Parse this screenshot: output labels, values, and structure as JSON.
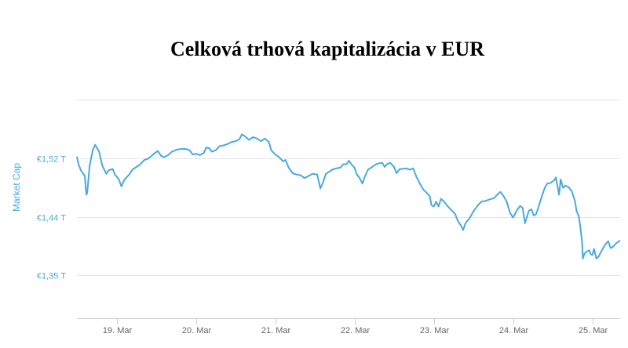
{
  "chart_data": {
    "type": "line",
    "title": "Celková trhová kapitalizácia v EUR",
    "xlabel": "",
    "ylabel": "Market Cap",
    "y_unit": "T EUR",
    "yticks": [
      {
        "value": 1.352,
        "label": "€1,35 T"
      },
      {
        "value": 1.436,
        "label": "€1,44 T"
      },
      {
        "value": 1.52,
        "label": "€1,52 T"
      }
    ],
    "ylim": [
      1.29,
      1.604
    ],
    "xlim": [
      18.5,
      25.35
    ],
    "xticks": [
      {
        "value": 19,
        "label": "19. Mar"
      },
      {
        "value": 20,
        "label": "20. Mar"
      },
      {
        "value": 21,
        "label": "21. Mar"
      },
      {
        "value": 22,
        "label": "22. Mar"
      },
      {
        "value": 23,
        "label": "23. Mar"
      },
      {
        "value": 24,
        "label": "24. Mar"
      },
      {
        "value": 25,
        "label": "25. Mar"
      }
    ],
    "grid": true,
    "legend": "none",
    "colors": {
      "line": "#4aa9dc",
      "grid": "#e6e6e6",
      "axis": "#cccccc",
      "tick_text": "#666666",
      "y_text": "#4aa9dc"
    },
    "series": [
      {
        "points": [
          [
            18.5,
            1.523
          ],
          [
            18.52,
            1.512
          ],
          [
            18.55,
            1.503
          ],
          [
            18.6,
            1.495
          ],
          [
            18.61,
            1.478
          ],
          [
            18.62,
            1.468
          ],
          [
            18.63,
            1.471
          ],
          [
            18.66,
            1.51
          ],
          [
            18.7,
            1.532
          ],
          [
            18.73,
            1.54
          ],
          [
            18.78,
            1.53
          ],
          [
            18.82,
            1.51
          ],
          [
            18.87,
            1.498
          ],
          [
            18.9,
            1.503
          ],
          [
            18.95,
            1.505
          ],
          [
            18.98,
            1.497
          ],
          [
            19.03,
            1.49
          ],
          [
            19.06,
            1.48
          ],
          [
            19.1,
            1.49
          ],
          [
            19.16,
            1.497
          ],
          [
            19.2,
            1.504
          ],
          [
            19.25,
            1.508
          ],
          [
            19.3,
            1.512
          ],
          [
            19.35,
            1.518
          ],
          [
            19.4,
            1.52
          ],
          [
            19.46,
            1.526
          ],
          [
            19.52,
            1.531
          ],
          [
            19.56,
            1.524
          ],
          [
            19.6,
            1.522
          ],
          [
            19.65,
            1.525
          ],
          [
            19.7,
            1.53
          ],
          [
            19.76,
            1.533
          ],
          [
            19.82,
            1.534
          ],
          [
            19.87,
            1.534
          ],
          [
            19.92,
            1.532
          ],
          [
            19.96,
            1.526
          ],
          [
            20.0,
            1.527
          ],
          [
            20.05,
            1.525
          ],
          [
            20.1,
            1.528
          ],
          [
            20.13,
            1.536
          ],
          [
            20.17,
            1.535
          ],
          [
            20.2,
            1.53
          ],
          [
            20.25,
            1.532
          ],
          [
            20.3,
            1.538
          ],
          [
            20.35,
            1.539
          ],
          [
            20.4,
            1.541
          ],
          [
            20.45,
            1.544
          ],
          [
            20.5,
            1.545
          ],
          [
            20.55,
            1.548
          ],
          [
            20.58,
            1.555
          ],
          [
            20.62,
            1.552
          ],
          [
            20.67,
            1.547
          ],
          [
            20.72,
            1.551
          ],
          [
            20.77,
            1.549
          ],
          [
            20.82,
            1.545
          ],
          [
            20.87,
            1.549
          ],
          [
            20.92,
            1.544
          ],
          [
            20.95,
            1.532
          ],
          [
            21.0,
            1.526
          ],
          [
            21.05,
            1.522
          ],
          [
            21.1,
            1.516
          ],
          [
            21.13,
            1.518
          ],
          [
            21.17,
            1.507
          ],
          [
            21.22,
            1.499
          ],
          [
            21.27,
            1.497
          ],
          [
            21.32,
            1.496
          ],
          [
            21.37,
            1.492
          ],
          [
            21.42,
            1.495
          ],
          [
            21.47,
            1.498
          ],
          [
            21.53,
            1.497
          ],
          [
            21.57,
            1.477
          ],
          [
            21.6,
            1.485
          ],
          [
            21.64,
            1.498
          ],
          [
            21.68,
            1.501
          ],
          [
            21.72,
            1.504
          ],
          [
            21.77,
            1.506
          ],
          [
            21.82,
            1.507
          ],
          [
            21.86,
            1.512
          ],
          [
            21.9,
            1.512
          ],
          [
            21.93,
            1.517
          ],
          [
            21.96,
            1.512
          ],
          [
            22.0,
            1.507
          ],
          [
            22.03,
            1.497
          ],
          [
            22.06,
            1.493
          ],
          [
            22.1,
            1.484
          ],
          [
            22.13,
            1.494
          ],
          [
            22.17,
            1.504
          ],
          [
            22.21,
            1.507
          ],
          [
            22.26,
            1.511
          ],
          [
            22.3,
            1.513
          ],
          [
            22.35,
            1.514
          ],
          [
            22.38,
            1.508
          ],
          [
            22.41,
            1.512
          ],
          [
            22.45,
            1.514
          ],
          [
            22.5,
            1.508
          ],
          [
            22.53,
            1.499
          ],
          [
            22.57,
            1.505
          ],
          [
            22.6,
            1.505
          ],
          [
            22.65,
            1.506
          ],
          [
            22.7,
            1.504
          ],
          [
            22.74,
            1.506
          ],
          [
            22.78,
            1.494
          ],
          [
            22.82,
            1.485
          ],
          [
            22.87,
            1.475
          ],
          [
            22.9,
            1.472
          ],
          [
            22.95,
            1.466
          ],
          [
            22.97,
            1.453
          ],
          [
            23.0,
            1.451
          ],
          [
            23.03,
            1.458
          ],
          [
            23.06,
            1.451
          ],
          [
            23.09,
            1.462
          ],
          [
            23.13,
            1.458
          ],
          [
            23.17,
            1.452
          ],
          [
            23.22,
            1.446
          ],
          [
            23.27,
            1.44
          ],
          [
            23.3,
            1.431
          ],
          [
            23.35,
            1.422
          ],
          [
            23.37,
            1.417
          ],
          [
            23.4,
            1.427
          ],
          [
            23.45,
            1.434
          ],
          [
            23.5,
            1.444
          ],
          [
            23.55,
            1.452
          ],
          [
            23.6,
            1.458
          ],
          [
            23.65,
            1.459
          ],
          [
            23.7,
            1.461
          ],
          [
            23.76,
            1.463
          ],
          [
            23.8,
            1.468
          ],
          [
            23.84,
            1.472
          ],
          [
            23.88,
            1.466
          ],
          [
            23.92,
            1.458
          ],
          [
            23.96,
            1.442
          ],
          [
            24.0,
            1.435
          ],
          [
            24.05,
            1.446
          ],
          [
            24.09,
            1.452
          ],
          [
            24.12,
            1.449
          ],
          [
            24.15,
            1.427
          ],
          [
            24.18,
            1.438
          ],
          [
            24.2,
            1.445
          ],
          [
            24.23,
            1.447
          ],
          [
            24.26,
            1.438
          ],
          [
            24.29,
            1.44
          ],
          [
            24.32,
            1.45
          ],
          [
            24.36,
            1.465
          ],
          [
            24.4,
            1.478
          ],
          [
            24.43,
            1.484
          ],
          [
            24.47,
            1.485
          ],
          [
            24.52,
            1.489
          ],
          [
            24.54,
            1.493
          ],
          [
            24.56,
            1.48
          ],
          [
            24.58,
            1.468
          ],
          [
            24.6,
            1.49
          ],
          [
            24.63,
            1.478
          ],
          [
            24.66,
            1.481
          ],
          [
            24.7,
            1.479
          ],
          [
            24.74,
            1.473
          ],
          [
            24.78,
            1.459
          ],
          [
            24.8,
            1.445
          ],
          [
            24.83,
            1.436
          ],
          [
            24.85,
            1.419
          ],
          [
            24.87,
            1.4
          ],
          [
            24.88,
            1.376
          ],
          [
            24.9,
            1.383
          ],
          [
            24.93,
            1.386
          ],
          [
            24.96,
            1.388
          ],
          [
            24.98,
            1.382
          ],
          [
            25.0,
            1.381
          ],
          [
            25.02,
            1.39
          ],
          [
            25.05,
            1.376
          ],
          [
            25.08,
            1.379
          ],
          [
            25.12,
            1.388
          ],
          [
            25.16,
            1.396
          ],
          [
            25.2,
            1.401
          ],
          [
            25.23,
            1.391
          ],
          [
            25.27,
            1.394
          ],
          [
            25.3,
            1.398
          ],
          [
            25.35,
            1.402
          ]
        ]
      }
    ]
  }
}
